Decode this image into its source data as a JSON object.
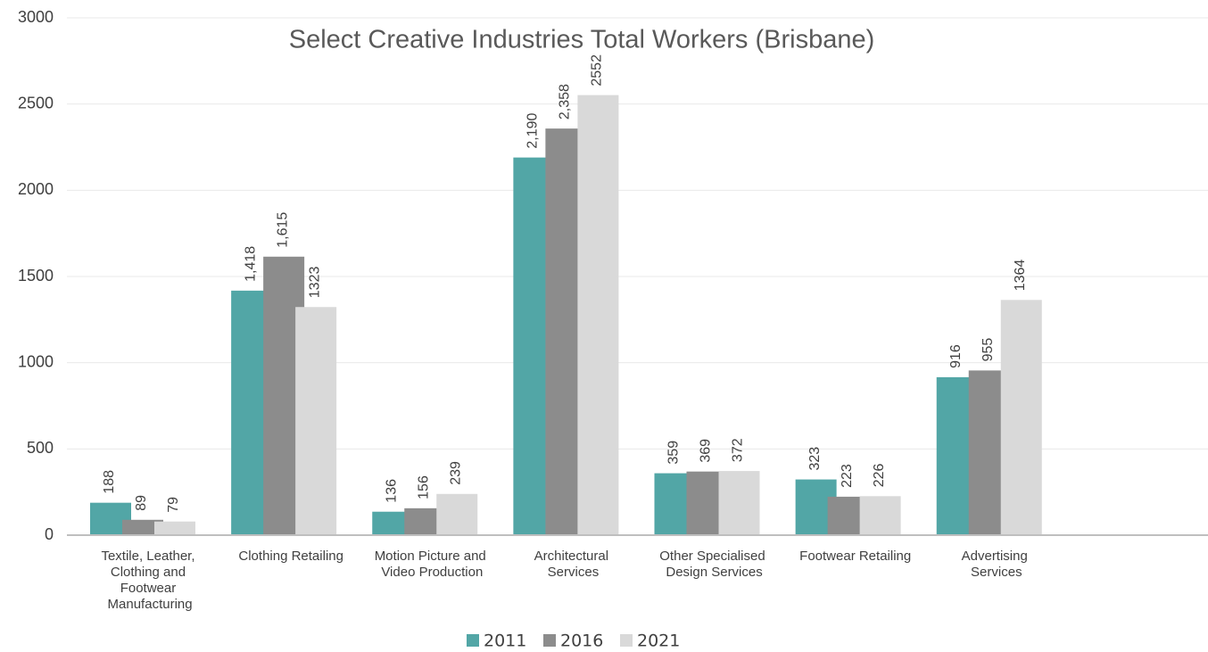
{
  "chart_data": {
    "type": "bar",
    "title": "Select Creative Industries Total Workers (Brisbane)",
    "categories": [
      "Textile, Leather, Clothing and Footwear Manufacturing",
      "Clothing Retailing",
      "Motion Picture and Video Production",
      "Architectural Services",
      "Other Specialised Design Services",
      "Footwear Retailing",
      "Advertising Services",
      null
    ],
    "series": [
      {
        "name": "2011",
        "color": "#52a6a6",
        "values": [
          188,
          1418,
          136,
          2190,
          359,
          323,
          916,
          null
        ],
        "value_labels": [
          "188",
          "1,418",
          "136",
          "2,190",
          "359",
          "323",
          "916",
          null
        ]
      },
      {
        "name": "2016",
        "color": "#8c8c8c",
        "values": [
          89,
          1615,
          156,
          2358,
          369,
          223,
          955,
          null
        ],
        "value_labels": [
          "89",
          "1,615",
          "156",
          "2,358",
          "369",
          "223",
          "955",
          null
        ]
      },
      {
        "name": "2021",
        "color": "#d9d9d9",
        "values": [
          79,
          1323,
          239,
          2552,
          372,
          226,
          1364,
          null
        ],
        "value_labels": [
          "79",
          "1323",
          "239",
          "2552",
          "372",
          "226",
          "1364",
          null
        ]
      }
    ],
    "ylim": [
      0,
      3000
    ],
    "yticks": [
      0,
      500,
      1000,
      1500,
      2000,
      2500,
      3000
    ],
    "grid": true,
    "legend": "bottom"
  }
}
